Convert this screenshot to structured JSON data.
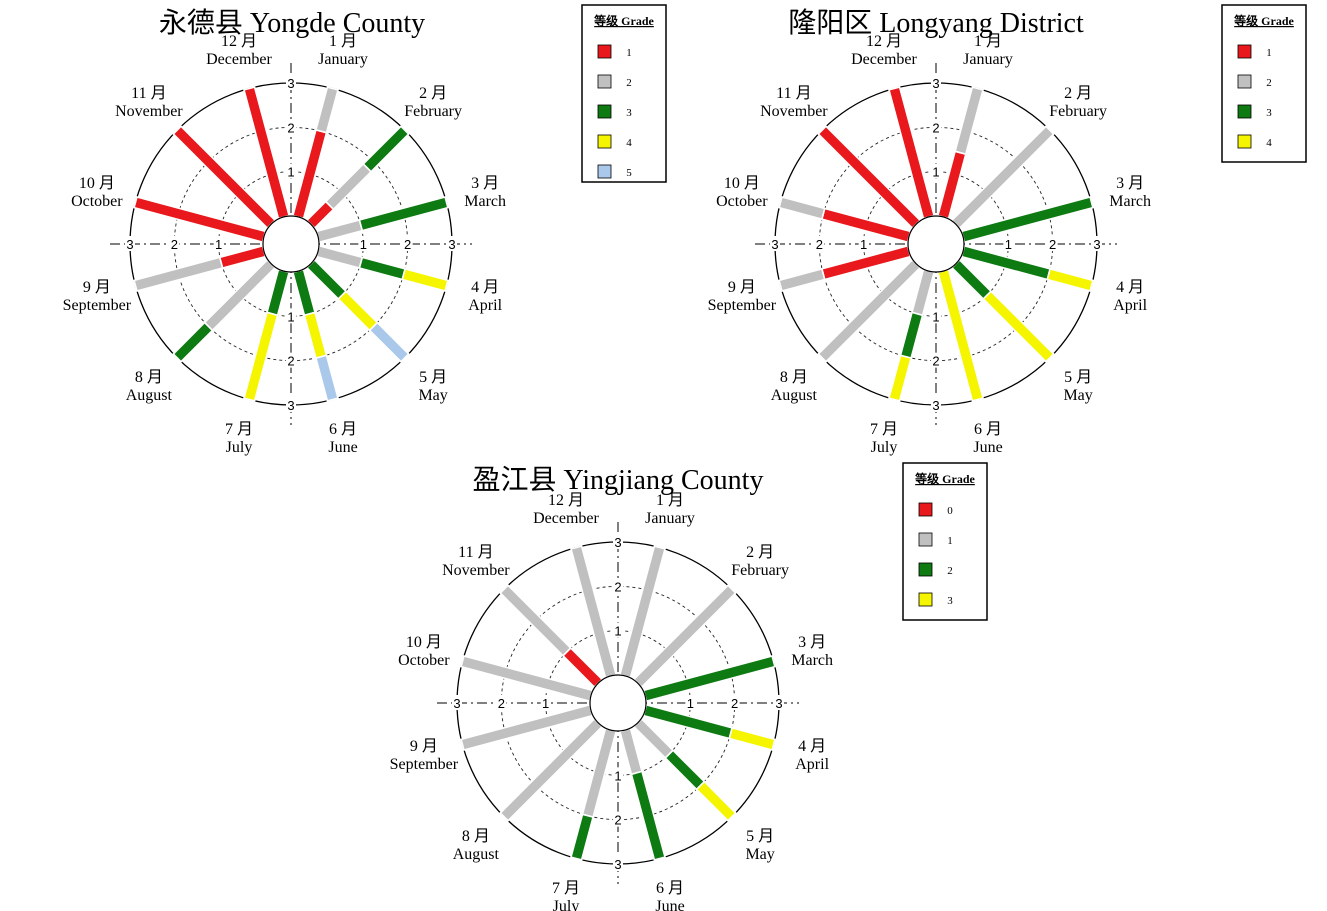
{
  "months": [
    {
      "cn": "1 月",
      "en": "January"
    },
    {
      "cn": "2 月",
      "en": "February"
    },
    {
      "cn": "3 月",
      "en": "March"
    },
    {
      "cn": "4 月",
      "en": "April"
    },
    {
      "cn": "5 月",
      "en": "May"
    },
    {
      "cn": "6 月",
      "en": "June"
    },
    {
      "cn": "7 月",
      "en": "July"
    },
    {
      "cn": "8 月",
      "en": "August"
    },
    {
      "cn": "9 月",
      "en": "September"
    },
    {
      "cn": "10 月",
      "en": "October"
    },
    {
      "cn": "11 月",
      "en": "November"
    },
    {
      "cn": "12 月",
      "en": "December"
    }
  ],
  "legend_title": "等级 Grade",
  "chart_data": [
    {
      "type": "polar-stacked-bar",
      "title": "永德县 Yongde County",
      "rlim": [
        0,
        3
      ],
      "rticks": [
        "1",
        "2",
        "3"
      ],
      "grid": true,
      "legend": {
        "position": "top-right",
        "entries": [
          {
            "label": "1",
            "color": "#e8181c"
          },
          {
            "label": "2",
            "color": "#c0c0c0"
          },
          {
            "label": "3",
            "color": "#0e7a12"
          },
          {
            "label": "4",
            "color": "#f5f500"
          },
          {
            "label": "5",
            "color": "#a9c8ea"
          }
        ]
      },
      "series": [
        {
          "month": "January",
          "segments": [
            {
              "grade": "1",
              "value": 2.0
            },
            {
              "grade": "2",
              "value": 1.0
            }
          ]
        },
        {
          "month": "February",
          "segments": [
            {
              "grade": "1",
              "value": 0.6
            },
            {
              "grade": "2",
              "value": 1.2
            },
            {
              "grade": "3",
              "value": 1.2
            }
          ]
        },
        {
          "month": "March",
          "segments": [
            {
              "grade": "2",
              "value": 1.0
            },
            {
              "grade": "3",
              "value": 2.0
            }
          ]
        },
        {
          "month": "April",
          "segments": [
            {
              "grade": "2",
              "value": 1.0
            },
            {
              "grade": "3",
              "value": 1.0
            },
            {
              "grade": "4",
              "value": 1.0
            }
          ]
        },
        {
          "month": "May",
          "segments": [
            {
              "grade": "3",
              "value": 1.0
            },
            {
              "grade": "4",
              "value": 1.0
            },
            {
              "grade": "5",
              "value": 1.0
            }
          ]
        },
        {
          "month": "June",
          "segments": [
            {
              "grade": "3",
              "value": 1.0
            },
            {
              "grade": "4",
              "value": 1.0
            },
            {
              "grade": "5",
              "value": 1.0
            }
          ]
        },
        {
          "month": "July",
          "segments": [
            {
              "grade": "3",
              "value": 1.0
            },
            {
              "grade": "4",
              "value": 2.0
            }
          ]
        },
        {
          "month": "August",
          "segments": [
            {
              "grade": "2",
              "value": 2.0
            },
            {
              "grade": "3",
              "value": 1.0
            }
          ]
        },
        {
          "month": "September",
          "segments": [
            {
              "grade": "1",
              "value": 1.0
            },
            {
              "grade": "2",
              "value": 2.0
            }
          ]
        },
        {
          "month": "October",
          "segments": [
            {
              "grade": "1",
              "value": 3.0
            }
          ]
        },
        {
          "month": "November",
          "segments": [
            {
              "grade": "1",
              "value": 3.0
            }
          ]
        },
        {
          "month": "December",
          "segments": [
            {
              "grade": "1",
              "value": 3.0
            }
          ]
        }
      ]
    },
    {
      "type": "polar-stacked-bar",
      "title": "隆阳区 Longyang District",
      "rlim": [
        0,
        3
      ],
      "rticks": [
        "1",
        "2",
        "3"
      ],
      "grid": true,
      "legend": {
        "position": "top-right",
        "entries": [
          {
            "label": "1",
            "color": "#e8181c"
          },
          {
            "label": "2",
            "color": "#c0c0c0"
          },
          {
            "label": "3",
            "color": "#0e7a12"
          },
          {
            "label": "4",
            "color": "#f5f500"
          }
        ]
      },
      "series": [
        {
          "month": "January",
          "segments": [
            {
              "grade": "1",
              "value": 1.5
            },
            {
              "grade": "2",
              "value": 1.5
            }
          ]
        },
        {
          "month": "February",
          "segments": [
            {
              "grade": "2",
              "value": 3.0
            }
          ]
        },
        {
          "month": "March",
          "segments": [
            {
              "grade": "3",
              "value": 3.0
            }
          ]
        },
        {
          "month": "April",
          "segments": [
            {
              "grade": "3",
              "value": 2.0
            },
            {
              "grade": "4",
              "value": 1.0
            }
          ]
        },
        {
          "month": "May",
          "segments": [
            {
              "grade": "3",
              "value": 1.0
            },
            {
              "grade": "4",
              "value": 2.0
            }
          ]
        },
        {
          "month": "June",
          "segments": [
            {
              "grade": "4",
              "value": 3.0
            }
          ]
        },
        {
          "month": "July",
          "segments": [
            {
              "grade": "2",
              "value": 1.0
            },
            {
              "grade": "3",
              "value": 1.0
            },
            {
              "grade": "4",
              "value": 1.0
            }
          ]
        },
        {
          "month": "August",
          "segments": [
            {
              "grade": "2",
              "value": 3.0
            }
          ]
        },
        {
          "month": "September",
          "segments": [
            {
              "grade": "1",
              "value": 2.0
            },
            {
              "grade": "2",
              "value": 1.0
            }
          ]
        },
        {
          "month": "October",
          "segments": [
            {
              "grade": "1",
              "value": 2.0
            },
            {
              "grade": "2",
              "value": 1.0
            }
          ]
        },
        {
          "month": "November",
          "segments": [
            {
              "grade": "1",
              "value": 3.0
            }
          ]
        },
        {
          "month": "December",
          "segments": [
            {
              "grade": "1",
              "value": 3.0
            }
          ]
        }
      ]
    },
    {
      "type": "polar-stacked-bar",
      "title": "盈江县 Yingjiang County",
      "rlim": [
        0,
        3
      ],
      "rticks": [
        "1",
        "2",
        "3"
      ],
      "grid": true,
      "legend": {
        "position": "top-right",
        "entries": [
          {
            "label": "0",
            "color": "#e8181c"
          },
          {
            "label": "1",
            "color": "#c0c0c0"
          },
          {
            "label": "2",
            "color": "#0e7a12"
          },
          {
            "label": "3",
            "color": "#f5f500"
          }
        ]
      },
      "series": [
        {
          "month": "January",
          "segments": [
            {
              "grade": "1",
              "value": 3.0
            }
          ]
        },
        {
          "month": "February",
          "segments": [
            {
              "grade": "1",
              "value": 3.0
            }
          ]
        },
        {
          "month": "March",
          "segments": [
            {
              "grade": "2",
              "value": 3.0
            }
          ]
        },
        {
          "month": "April",
          "segments": [
            {
              "grade": "2",
              "value": 2.0
            },
            {
              "grade": "3",
              "value": 1.0
            }
          ]
        },
        {
          "month": "May",
          "segments": [
            {
              "grade": "1",
              "value": 1.0
            },
            {
              "grade": "2",
              "value": 1.0
            },
            {
              "grade": "3",
              "value": 1.0
            }
          ]
        },
        {
          "month": "June",
          "segments": [
            {
              "grade": "1",
              "value": 1.0
            },
            {
              "grade": "2",
              "value": 2.0
            }
          ]
        },
        {
          "month": "July",
          "segments": [
            {
              "grade": "1",
              "value": 2.0
            },
            {
              "grade": "2",
              "value": 1.0
            }
          ]
        },
        {
          "month": "August",
          "segments": [
            {
              "grade": "1",
              "value": 3.0
            }
          ]
        },
        {
          "month": "September",
          "segments": [
            {
              "grade": "1",
              "value": 3.0
            }
          ]
        },
        {
          "month": "October",
          "segments": [
            {
              "grade": "1",
              "value": 3.0
            }
          ]
        },
        {
          "month": "November",
          "segments": [
            {
              "grade": "0",
              "value": 1.0
            },
            {
              "grade": "1",
              "value": 2.0
            }
          ]
        },
        {
          "month": "December",
          "segments": [
            {
              "grade": "1",
              "value": 3.0
            }
          ]
        }
      ]
    }
  ]
}
